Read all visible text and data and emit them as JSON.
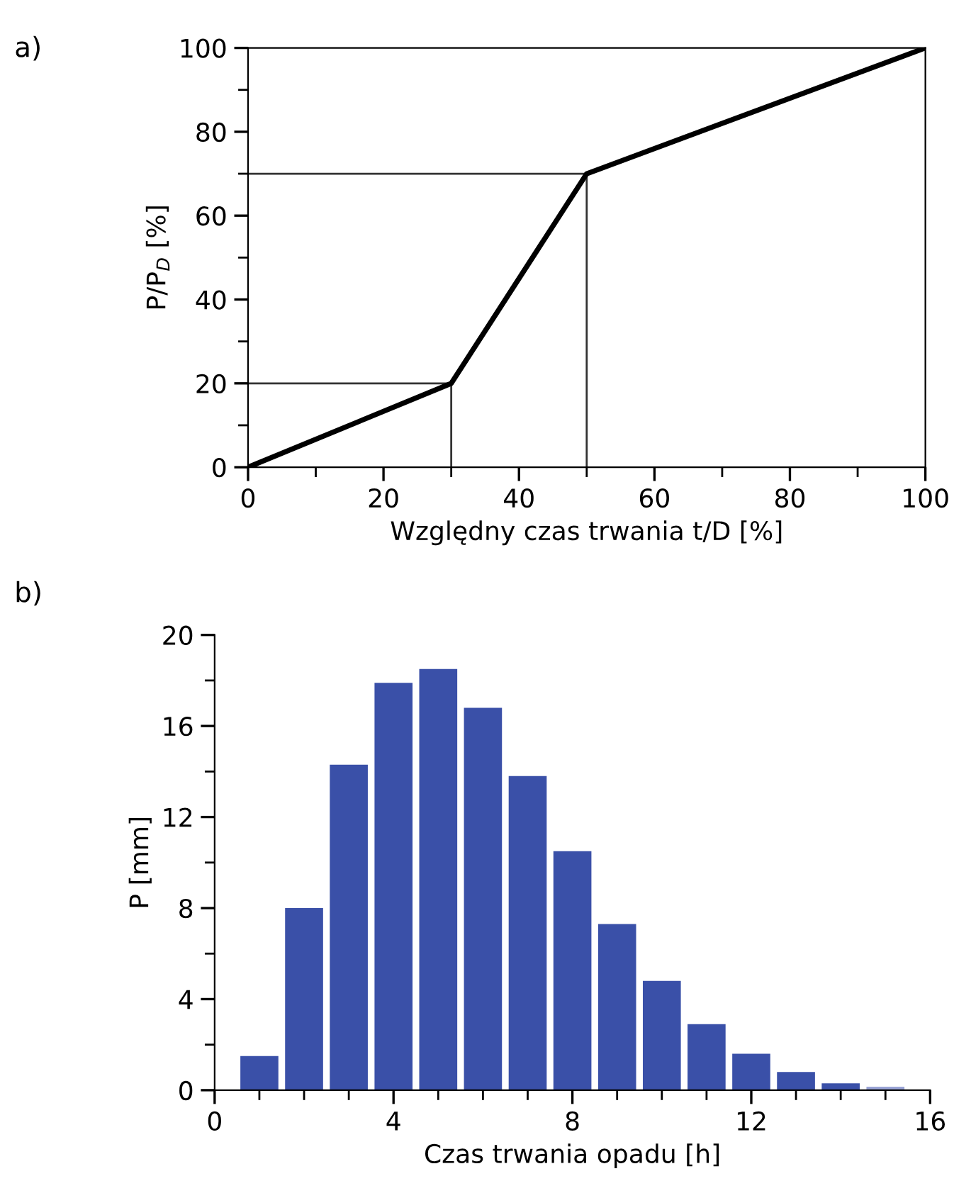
{
  "chart_data": [
    {
      "type": "line",
      "title": "a)",
      "xlabel": "Względny czas trwania t/D [%]",
      "ylabel": "P/P$_{D}$ [%]",
      "series": [
        {
          "color": "#000000",
          "x": [
            0,
            30,
            50,
            100
          ],
          "values": [
            0,
            20,
            70,
            100
          ]
        },
        {
          "color": "#333333",
          "x": [
            0,
            30,
            30
          ],
          "values": [
            20,
            20,
            0
          ]
        },
        {
          "color": "#333333",
          "x": [
            0,
            50,
            50
          ],
          "values": [
            70,
            70,
            0
          ]
        }
      ],
      "xlim": [
        0,
        100
      ],
      "ylim": [
        0,
        100
      ],
      "xticks": [
        0,
        {
          "value": 10,
          "label": null
        },
        20,
        {
          "value": 30,
          "label": null
        },
        40,
        {
          "value": 50,
          "label": null
        },
        60,
        {
          "value": 70,
          "label": null
        },
        80,
        {
          "value": 90,
          "label": null
        },
        100
      ],
      "yticks": [
        0,
        {
          "value": 10,
          "label": null
        },
        20,
        {
          "value": 30,
          "label": null
        },
        40,
        {
          "value": 50,
          "label": null
        },
        60,
        {
          "value": 70,
          "label": null
        },
        80,
        {
          "value": 90,
          "label": null
        },
        100
      ],
      "grid": false,
      "legend": false,
      "marker": "none",
      "line_style": "solid"
    },
    {
      "type": "bar",
      "title": "b)",
      "xlabel": "Czas trwania opadu [h]",
      "ylabel": "P [mm]",
      "x": [
        1,
        2,
        3,
        4,
        5,
        6,
        7,
        8,
        9,
        10,
        11,
        12,
        13,
        14,
        15
      ],
      "values": [
        1.5,
        8.0,
        14.3,
        17.9,
        18.5,
        16.8,
        13.8,
        10.5,
        7.3,
        4.8,
        2.9,
        1.6,
        0.8,
        0.3,
        0.15
      ],
      "colors": [
        "#3a50a8",
        "#3a50a8",
        "#3a50a8",
        "#3a50a8",
        "#3a50a8",
        "#3a50a8",
        "#3a50a8",
        "#3a50a8",
        "#3a50a8",
        "#3a50a8",
        "#3a50a8",
        "#3a50a8",
        "#3a50a8",
        "#3a50a8",
        "#9aa4d6"
      ],
      "xlim": [
        0,
        16
      ],
      "ylim": [
        0,
        20
      ],
      "xticks": [
        0,
        {
          "value": 1,
          "label": null
        },
        {
          "value": 2,
          "label": null
        },
        {
          "value": 3,
          "label": null
        },
        4,
        {
          "value": 5,
          "label": null
        },
        {
          "value": 6,
          "label": null
        },
        {
          "value": 7,
          "label": null
        },
        8,
        {
          "value": 9,
          "label": null
        },
        {
          "value": 10,
          "label": null
        },
        {
          "value": 11,
          "label": null
        },
        12,
        {
          "value": 13,
          "label": null
        },
        {
          "value": 14,
          "label": null
        },
        {
          "value": 15,
          "label": null
        },
        16
      ],
      "yticks": [
        0,
        {
          "value": 2,
          "label": null
        },
        4,
        {
          "value": 6,
          "label": null
        },
        8,
        {
          "value": 10,
          "label": null
        },
        12,
        {
          "value": 14,
          "label": null
        },
        16,
        {
          "value": 18,
          "label": null
        },
        20
      ],
      "grid": false,
      "legend": false
    }
  ]
}
